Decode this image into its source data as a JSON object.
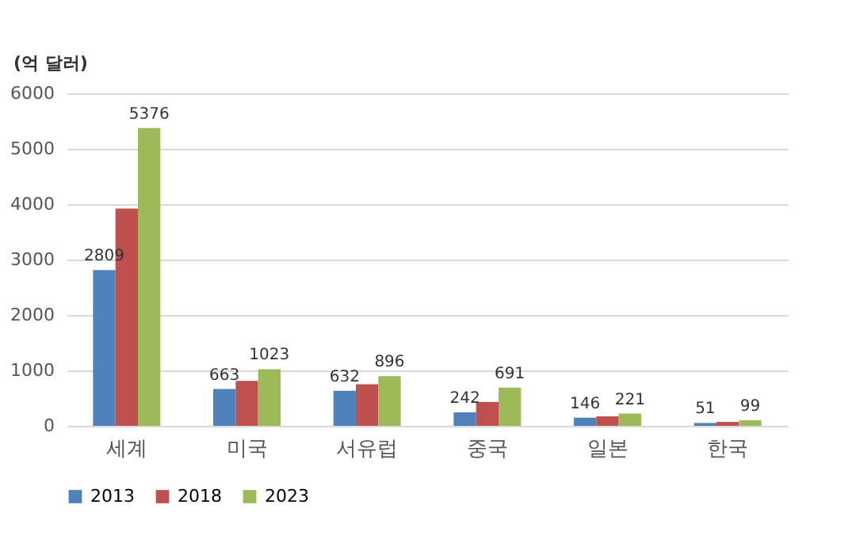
{
  "chart_data": {
    "type": "bar",
    "ylabel": "(억 달러)",
    "categories": [
      "세계",
      "미국",
      "서유럽",
      "중국",
      "일본",
      "한국"
    ],
    "series": [
      {
        "name": "2013",
        "color": "#4f81bd",
        "values": [
          2809,
          663,
          632,
          242,
          146,
          51
        ],
        "value_labels": [
          "2809",
          "663",
          "632",
          "242",
          "146",
          "51"
        ]
      },
      {
        "name": "2018",
        "color": "#c0504d",
        "values": [
          3920,
          810,
          750,
          430,
          170,
          70
        ]
      },
      {
        "name": "2023",
        "color": "#9bbb59",
        "values": [
          5376,
          1023,
          896,
          691,
          221,
          99
        ],
        "value_labels": [
          "5376",
          "1023",
          "896",
          "691",
          "221",
          "99"
        ]
      }
    ],
    "ylim": [
      0,
      6000
    ],
    "yticks": [
      0,
      1000,
      2000,
      3000,
      4000,
      5000,
      6000
    ],
    "grid": "y",
    "legend": "bottom"
  }
}
